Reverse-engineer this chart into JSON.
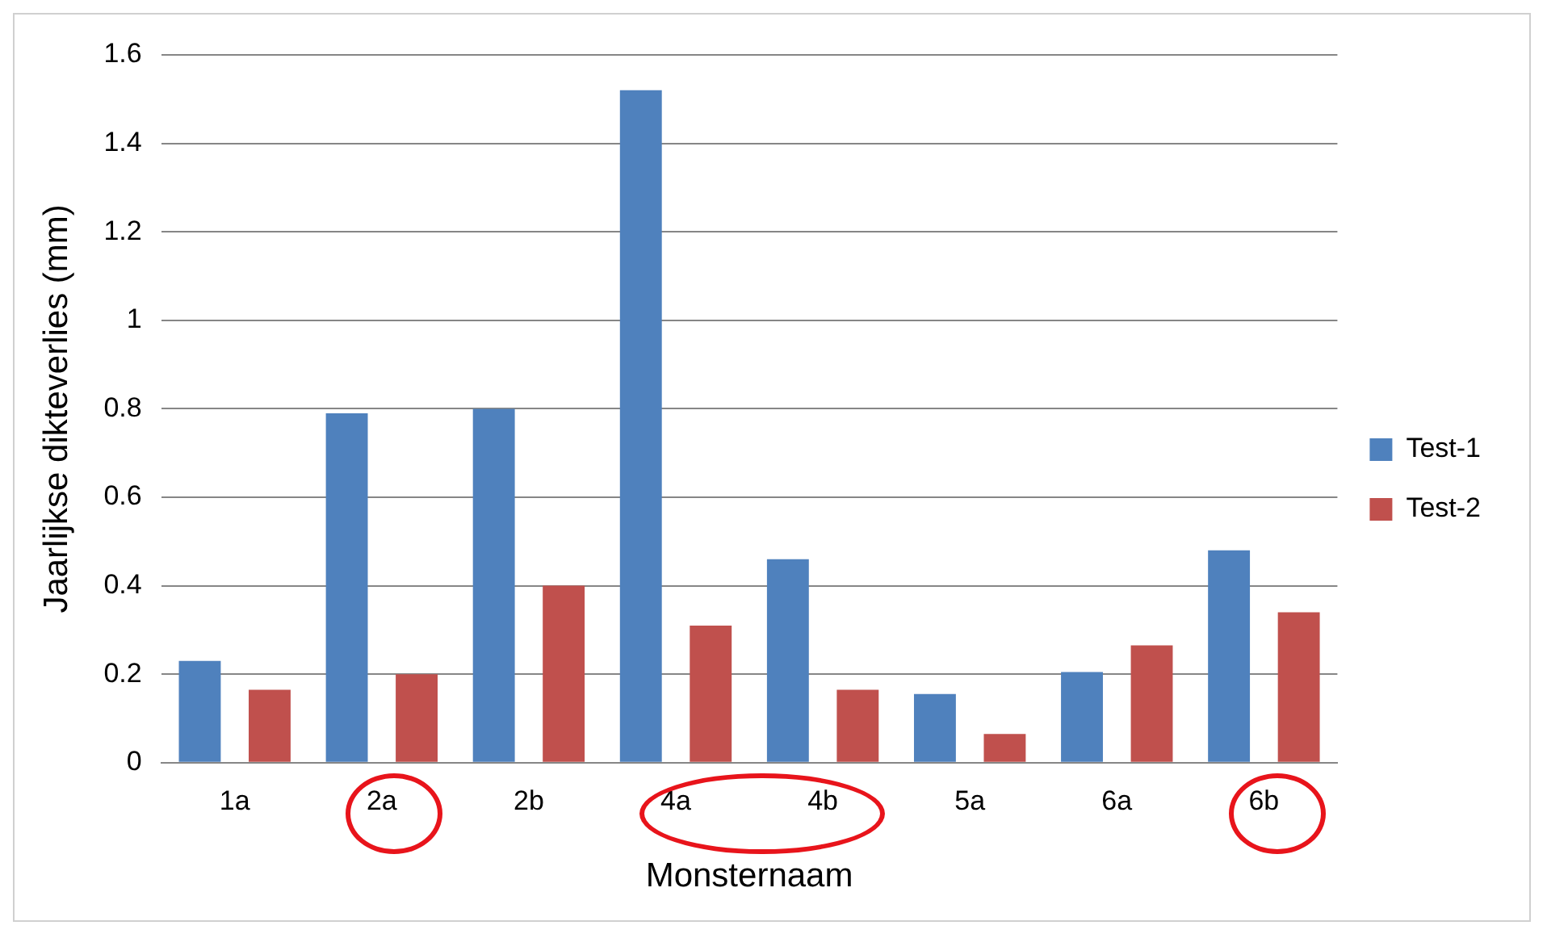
{
  "chart_data": {
    "type": "bar",
    "xlabel": "Monsternaam",
    "ylabel": "Jaarlijkse dikteverlies (mm)",
    "categories": [
      "1a",
      "2a",
      "2b",
      "4a",
      "4b",
      "5a",
      "6a",
      "6b"
    ],
    "series": [
      {
        "name": "Test-1",
        "color": "#4f81bd",
        "values": [
          0.23,
          0.79,
          0.8,
          1.52,
          0.46,
          0.155,
          0.205,
          0.48
        ]
      },
      {
        "name": "Test-2",
        "color": "#c0504d",
        "values": [
          0.165,
          0.2,
          0.4,
          0.31,
          0.165,
          0.065,
          0.265,
          0.34
        ]
      }
    ],
    "ylim": [
      0,
      1.6
    ],
    "yticks": [
      0,
      0.2,
      0.4,
      0.6,
      0.8,
      1,
      1.2,
      1.4,
      1.6
    ],
    "grid": "y",
    "legend": "right"
  }
}
